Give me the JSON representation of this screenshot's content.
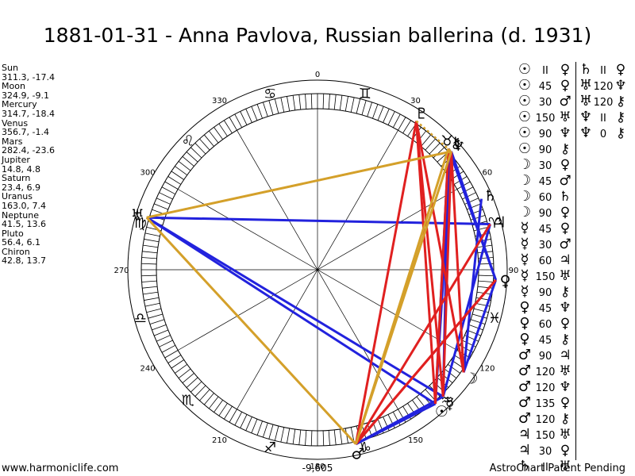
{
  "title": "1881-01-31 - Anna Pavlova, Russian ballerina (d. 1931)",
  "planets": [
    {
      "name": "Sun",
      "coords": "311.3, -17.4",
      "glyph": "☉",
      "lon": 311.3
    },
    {
      "name": "Moon",
      "coords": "324.9, -9.1",
      "glyph": "☽",
      "lon": 324.9
    },
    {
      "name": "Mercury",
      "coords": "314.7, -18.4",
      "glyph": "☿",
      "lon": 314.7
    },
    {
      "name": "Venus",
      "coords": "356.7, -1.4",
      "glyph": "♀",
      "lon": 356.7
    },
    {
      "name": "Mars",
      "coords": "282.4, -23.6",
      "glyph": "♂",
      "lon": 282.4
    },
    {
      "name": "Jupiter",
      "coords": "14.8, 4.8",
      "glyph": "♃",
      "lon": 14.8
    },
    {
      "name": "Saturn",
      "coords": "23.4, 6.9",
      "glyph": "♄",
      "lon": 23.4
    },
    {
      "name": "Uranus",
      "coords": "163.0, 7.4",
      "glyph": "♅",
      "lon": 163.0
    },
    {
      "name": "Neptune",
      "coords": "41.5, 13.6",
      "glyph": "♆",
      "lon": 41.5
    },
    {
      "name": "Pluto",
      "coords": "56.4, 6.1",
      "glyph": "♇",
      "lon": 56.4
    },
    {
      "name": "Chiron",
      "coords": "42.8, 13.7",
      "glyph": "⚷",
      "lon": 42.8
    }
  ],
  "degree_labels": [
    {
      "deg": "90"
    },
    {
      "deg": "60"
    },
    {
      "deg": "30"
    },
    {
      "deg": "0"
    },
    {
      "deg": "330"
    },
    {
      "deg": "300"
    },
    {
      "deg": "270"
    },
    {
      "deg": "240"
    },
    {
      "deg": "210"
    },
    {
      "deg": "180"
    },
    {
      "deg": "150"
    },
    {
      "deg": "120"
    }
  ],
  "zodiac_glyphs": [
    "♈",
    "♉",
    "♊",
    "♋",
    "♌",
    "♍",
    "♎",
    "♏",
    "♐",
    "♑",
    "♒",
    "♓"
  ],
  "center_label": "-9,605",
  "aspects_col1": [
    {
      "p1": "☉",
      "asp": "II",
      "p2": "♀"
    },
    {
      "p1": "☉",
      "asp": "45",
      "p2": "♀"
    },
    {
      "p1": "☉",
      "asp": "30",
      "p2": "♂"
    },
    {
      "p1": "☉",
      "asp": "150",
      "p2": "♅"
    },
    {
      "p1": "☉",
      "asp": "90",
      "p2": "♆"
    },
    {
      "p1": "☉",
      "asp": "90",
      "p2": "⚷"
    },
    {
      "p1": "☽",
      "asp": "30",
      "p2": "♀"
    },
    {
      "p1": "☽",
      "asp": "45",
      "p2": "♂"
    },
    {
      "p1": "☽",
      "asp": "60",
      "p2": "♄"
    },
    {
      "p1": "☽",
      "asp": "90",
      "p2": "♀"
    },
    {
      "p1": "☿",
      "asp": "45",
      "p2": "♀"
    },
    {
      "p1": "☿",
      "asp": "30",
      "p2": "♂"
    },
    {
      "p1": "☿",
      "asp": "60",
      "p2": "♃"
    },
    {
      "p1": "☿",
      "asp": "150",
      "p2": "♅"
    },
    {
      "p1": "☿",
      "asp": "90",
      "p2": "⚷"
    },
    {
      "p1": "♀",
      "asp": "45",
      "p2": "♆"
    },
    {
      "p1": "♀",
      "asp": "60",
      "p2": "♀"
    },
    {
      "p1": "♀",
      "asp": "45",
      "p2": "⚷"
    },
    {
      "p1": "♂",
      "asp": "90",
      "p2": "♃"
    },
    {
      "p1": "♂",
      "asp": "120",
      "p2": "♅"
    },
    {
      "p1": "♂",
      "asp": "120",
      "p2": "♆"
    },
    {
      "p1": "♂",
      "asp": "135",
      "p2": "♀"
    },
    {
      "p1": "♂",
      "asp": "120",
      "p2": "⚷"
    },
    {
      "p1": "♃",
      "asp": "150",
      "p2": "♅"
    },
    {
      "p1": "♃",
      "asp": "30",
      "p2": "♀"
    },
    {
      "p1": "♄",
      "asp": "II",
      "p2": "♅"
    }
  ],
  "aspects_col2": [
    {
      "p1": "♄",
      "asp": "II",
      "p2": "♀"
    },
    {
      "p1": "♅",
      "asp": "120",
      "p2": "♆"
    },
    {
      "p1": "♅",
      "asp": "120",
      "p2": "⚷"
    },
    {
      "p1": "♆",
      "asp": "II",
      "p2": "⚷"
    },
    {
      "p1": "♆",
      "asp": "0",
      "p2": "⚷"
    }
  ],
  "aspect_lines": [
    {
      "a": 311.3,
      "b": 41.5,
      "color": "#2222dd"
    },
    {
      "a": 311.3,
      "b": 42.8,
      "color": "#2222dd"
    },
    {
      "a": 314.7,
      "b": 42.8,
      "color": "#2222dd"
    },
    {
      "a": 311.3,
      "b": 163.0,
      "color": "#2222dd"
    },
    {
      "a": 314.7,
      "b": 163.0,
      "color": "#2222dd"
    },
    {
      "a": 282.4,
      "b": 311.3,
      "color": "#2222dd"
    },
    {
      "a": 282.4,
      "b": 314.7,
      "color": "#2222dd"
    },
    {
      "a": 324.9,
      "b": 356.7,
      "color": "#2222dd"
    },
    {
      "a": 324.9,
      "b": 23.4,
      "color": "#2222dd"
    },
    {
      "a": 314.7,
      "b": 14.8,
      "color": "#2222dd"
    },
    {
      "a": 356.7,
      "b": 41.5,
      "color": "#2222dd"
    },
    {
      "a": 356.7,
      "b": 42.8,
      "color": "#2222dd"
    },
    {
      "a": 163.0,
      "b": 14.8,
      "color": "#2222dd"
    },
    {
      "a": 282.4,
      "b": 14.8,
      "color": "#e02020"
    },
    {
      "a": 282.4,
      "b": 56.4,
      "color": "#e02020"
    },
    {
      "a": 282.4,
      "b": 356.7,
      "color": "#e02020"
    },
    {
      "a": 311.3,
      "b": 56.4,
      "color": "#e02020"
    },
    {
      "a": 314.7,
      "b": 56.4,
      "color": "#e02020"
    },
    {
      "a": 324.9,
      "b": 41.5,
      "color": "#e02020"
    },
    {
      "a": 324.9,
      "b": 56.4,
      "color": "#e02020"
    },
    {
      "a": 356.7,
      "b": 282.4,
      "color": "#e02020"
    },
    {
      "a": 311.3,
      "b": 42.8,
      "color": "#e02020"
    },
    {
      "a": 314.7,
      "b": 41.5,
      "color": "#e02020"
    },
    {
      "a": 163.0,
      "b": 41.5,
      "color": "#d4a02a"
    },
    {
      "a": 163.0,
      "b": 282.4,
      "color": "#d4a02a"
    },
    {
      "a": 282.4,
      "b": 41.5,
      "color": "#d4a02a"
    },
    {
      "a": 282.4,
      "b": 42.8,
      "color": "#d4a02a"
    }
  ],
  "dotted_lines": [
    {
      "a": 163.0,
      "b": 41.5,
      "color": "#d4a02a"
    },
    {
      "a": 56.4,
      "b": 41.5,
      "color": "#d4a02a"
    }
  ],
  "footer_left": "www.harmoniclife.com",
  "footer_right": "AstroChart Patent Pending"
}
